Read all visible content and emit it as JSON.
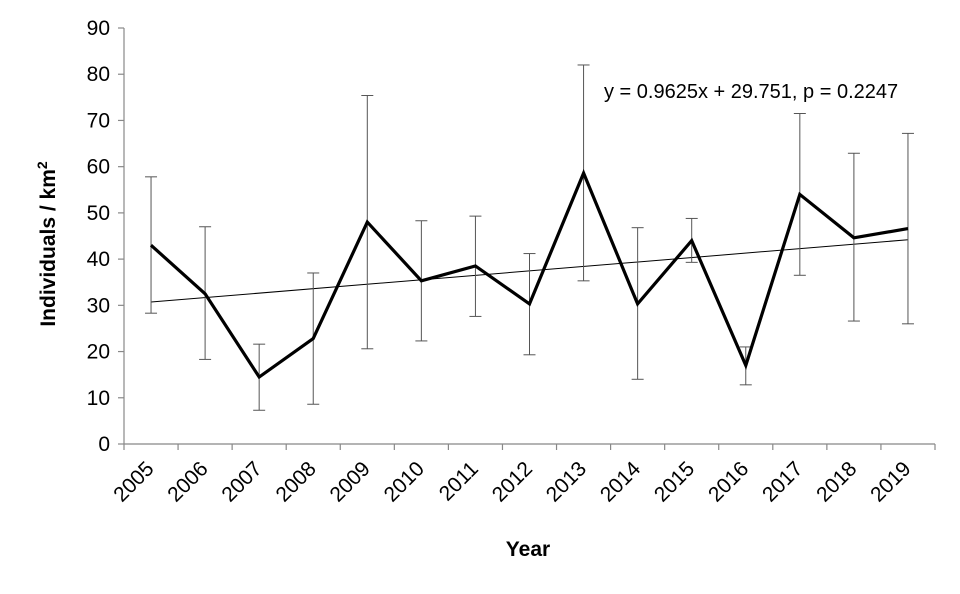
{
  "chart_data": {
    "type": "line",
    "title": "",
    "xlabel": "Year",
    "ylabel_main": "Individuals / km",
    "ylabel_sup": "2",
    "ylim": [
      0,
      90
    ],
    "yticks": [
      0,
      10,
      20,
      30,
      40,
      50,
      60,
      70,
      80,
      90
    ],
    "grid": false,
    "legend": "none",
    "categories": [
      "2005",
      "2006",
      "2007",
      "2008",
      "2009",
      "2010",
      "2011",
      "2012",
      "2013",
      "2014",
      "2015",
      "2016",
      "2017",
      "2018",
      "2019"
    ],
    "series": [
      {
        "values": [
          43.0,
          32.5,
          14.5,
          22.8,
          48.0,
          35.3,
          38.5,
          30.3,
          58.6,
          30.3,
          44.0,
          17.0,
          54.0,
          44.6,
          46.6
        ],
        "error_low": [
          28.3,
          18.3,
          7.3,
          8.6,
          20.6,
          22.3,
          27.6,
          19.3,
          35.3,
          14.0,
          39.3,
          12.8,
          36.5,
          26.6,
          26.0
        ],
        "error_high": [
          57.8,
          47.0,
          21.6,
          37.0,
          75.4,
          48.3,
          49.3,
          41.2,
          82.0,
          46.8,
          48.8,
          21.0,
          71.5,
          62.9,
          67.2
        ],
        "color": "#000000"
      }
    ],
    "trendline": {
      "slope": 0.9625,
      "intercept": 29.751,
      "color": "#000000"
    },
    "annotation": "y = 0.9625x + 29.751, p = 0.2247"
  }
}
